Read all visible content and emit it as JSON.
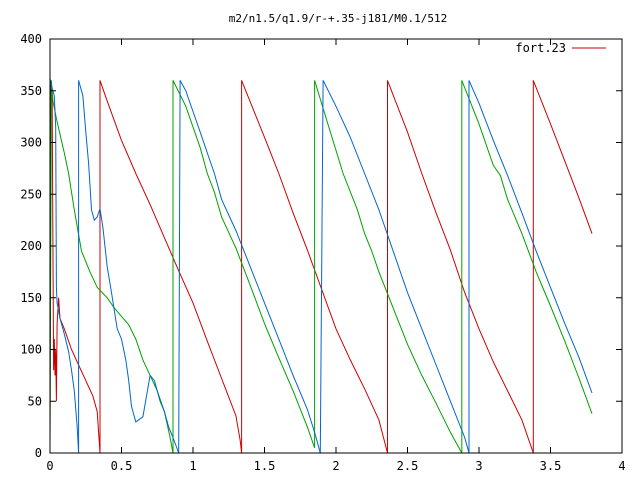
{
  "chart_data": {
    "type": "line",
    "title": "m2/n1.5/q1.9/r-+.35-j181/M0.1/512",
    "xlim": [
      0,
      4
    ],
    "ylim": [
      0,
      400
    ],
    "x_ticks": [
      0,
      0.5,
      1,
      1.5,
      2,
      2.5,
      3,
      3.5,
      4
    ],
    "x_tick_labels": [
      "0",
      "0.5",
      "1",
      "1.5",
      "2",
      "2.5",
      "3",
      "3.5",
      "4"
    ],
    "y_ticks": [
      0,
      50,
      100,
      150,
      200,
      250,
      300,
      350,
      400
    ],
    "y_tick_labels": [
      "0",
      "50",
      "100",
      "150",
      "200",
      "250",
      "300",
      "350",
      "400"
    ],
    "grid": false,
    "legend_position": "top-right",
    "legend": [
      "fort.23"
    ],
    "colors": {
      "red": "#cc0000",
      "green": "#00a000",
      "blue": "#0066cc"
    },
    "series": [
      {
        "name": "fort.23",
        "color": "#cc0000",
        "segments": [
          [
            [
              0.0,
              10
            ],
            [
              0.005,
              360
            ],
            [
              0.015,
              350
            ],
            [
              0.025,
              80
            ],
            [
              0.03,
              110
            ],
            [
              0.035,
              75
            ],
            [
              0.04,
              100
            ],
            [
              0.045,
              50
            ],
            [
              0.05,
              125
            ],
            [
              0.06,
              150
            ],
            [
              0.07,
              130
            ],
            [
              0.1,
              120
            ],
            [
              0.15,
              100
            ],
            [
              0.2,
              85
            ],
            [
              0.25,
              70
            ],
            [
              0.3,
              55
            ],
            [
              0.33,
              40
            ],
            [
              0.35,
              0
            ]
          ],
          [
            [
              0.35,
              360
            ],
            [
              0.4,
              340
            ],
            [
              0.5,
              302
            ],
            [
              0.6,
              270
            ],
            [
              0.7,
              240
            ],
            [
              0.8,
              208
            ],
            [
              0.9,
              176
            ],
            [
              1.0,
              145
            ],
            [
              1.1,
              108
            ],
            [
              1.2,
              72
            ],
            [
              1.3,
              36
            ],
            [
              1.33,
              12
            ],
            [
              1.34,
              0
            ]
          ],
          [
            [
              1.34,
              360
            ],
            [
              1.5,
              305
            ],
            [
              1.6,
              270
            ],
            [
              1.7,
              232
            ],
            [
              1.8,
              196
            ],
            [
              1.9,
              158
            ],
            [
              2.0,
              120
            ],
            [
              2.1,
              90
            ],
            [
              2.2,
              62
            ],
            [
              2.3,
              32
            ],
            [
              2.36,
              0
            ]
          ],
          [
            [
              2.36,
              360
            ],
            [
              2.5,
              310
            ],
            [
              2.6,
              270
            ],
            [
              2.7,
              232
            ],
            [
              2.8,
              196
            ],
            [
              2.9,
              155
            ],
            [
              3.0,
              120
            ],
            [
              3.1,
              88
            ],
            [
              3.2,
              60
            ],
            [
              3.3,
              32
            ],
            [
              3.38,
              0
            ]
          ],
          [
            [
              3.38,
              360
            ],
            [
              3.5,
              318
            ],
            [
              3.6,
              282
            ],
            [
              3.7,
              246
            ],
            [
              3.79,
              212
            ]
          ]
        ]
      },
      {
        "color": "#00a000",
        "segments": [
          [
            [
              0.0,
              10
            ],
            [
              0.01,
              360
            ],
            [
              0.02,
              340
            ],
            [
              0.05,
              320
            ],
            [
              0.1,
              290
            ],
            [
              0.13,
              270
            ],
            [
              0.17,
              235
            ],
            [
              0.22,
              195
            ],
            [
              0.28,
              175
            ],
            [
              0.33,
              160
            ],
            [
              0.4,
              150
            ],
            [
              0.45,
              140
            ],
            [
              0.5,
              132
            ],
            [
              0.55,
              124
            ],
            [
              0.6,
              110
            ],
            [
              0.65,
              90
            ],
            [
              0.7,
              75
            ],
            [
              0.75,
              60
            ],
            [
              0.8,
              40
            ],
            [
              0.84,
              15
            ],
            [
              0.86,
              0
            ]
          ],
          [
            [
              0.86,
              360
            ],
            [
              0.95,
              335
            ],
            [
              1.05,
              295
            ],
            [
              1.1,
              270
            ],
            [
              1.15,
              252
            ],
            [
              1.2,
              228
            ],
            [
              1.3,
              198
            ],
            [
              1.4,
              162
            ],
            [
              1.5,
              125
            ],
            [
              1.6,
              92
            ],
            [
              1.7,
              60
            ],
            [
              1.8,
              25
            ],
            [
              1.85,
              5
            ]
          ],
          [
            [
              1.85,
              360
            ],
            [
              1.95,
              315
            ],
            [
              2.05,
              270
            ],
            [
              2.15,
              235
            ],
            [
              2.2,
              212
            ],
            [
              2.25,
              195
            ],
            [
              2.3,
              175
            ],
            [
              2.4,
              140
            ],
            [
              2.5,
              105
            ],
            [
              2.6,
              75
            ],
            [
              2.7,
              48
            ],
            [
              2.8,
              20
            ],
            [
              2.88,
              0
            ]
          ],
          [
            [
              2.88,
              360
            ],
            [
              3.0,
              318
            ],
            [
              3.1,
              278
            ],
            [
              3.15,
              268
            ],
            [
              3.2,
              245
            ],
            [
              3.3,
              212
            ],
            [
              3.4,
              175
            ],
            [
              3.5,
              142
            ],
            [
              3.6,
              108
            ],
            [
              3.7,
              72
            ],
            [
              3.79,
              38
            ]
          ]
        ]
      },
      {
        "color": "#0066cc",
        "segments": [
          [
            [
              0.0,
              362
            ],
            [
              0.01,
              355
            ],
            [
              0.02,
              350
            ],
            [
              0.03,
              345
            ],
            [
              0.04,
              315
            ],
            [
              0.045,
              160
            ],
            [
              0.05,
              145
            ],
            [
              0.07,
              130
            ],
            [
              0.1,
              115
            ],
            [
              0.13,
              98
            ],
            [
              0.15,
              80
            ],
            [
              0.17,
              60
            ],
            [
              0.19,
              25
            ],
            [
              0.2,
              0
            ]
          ],
          [
            [
              0.2,
              360
            ],
            [
              0.23,
              345
            ],
            [
              0.25,
              310
            ],
            [
              0.27,
              280
            ],
            [
              0.29,
              235
            ],
            [
              0.31,
              225
            ],
            [
              0.33,
              228
            ],
            [
              0.35,
              236
            ],
            [
              0.37,
              218
            ],
            [
              0.4,
              180
            ],
            [
              0.43,
              155
            ],
            [
              0.47,
              120
            ],
            [
              0.5,
              110
            ],
            [
              0.53,
              90
            ],
            [
              0.55,
              70
            ],
            [
              0.57,
              45
            ],
            [
              0.6,
              30
            ],
            [
              0.65,
              35
            ],
            [
              0.7,
              75
            ],
            [
              0.73,
              70
            ],
            [
              0.77,
              50
            ],
            [
              0.8,
              40
            ],
            [
              0.83,
              25
            ],
            [
              0.86,
              15
            ],
            [
              0.9,
              0
            ]
          ],
          [
            [
              0.91,
              360
            ],
            [
              0.95,
              350
            ],
            [
              1.0,
              330
            ],
            [
              1.05,
              310
            ],
            [
              1.1,
              290
            ],
            [
              1.15,
              270
            ],
            [
              1.2,
              245
            ],
            [
              1.3,
              215
            ],
            [
              1.4,
              180
            ],
            [
              1.5,
              145
            ],
            [
              1.6,
              110
            ],
            [
              1.7,
              75
            ],
            [
              1.8,
              42
            ],
            [
              1.85,
              20
            ],
            [
              1.89,
              0
            ]
          ],
          [
            [
              1.91,
              360
            ],
            [
              2.0,
              335
            ],
            [
              2.1,
              305
            ],
            [
              2.2,
              270
            ],
            [
              2.3,
              235
            ],
            [
              2.4,
              195
            ],
            [
              2.5,
              155
            ],
            [
              2.6,
              120
            ],
            [
              2.7,
              85
            ],
            [
              2.8,
              50
            ],
            [
              2.9,
              15
            ],
            [
              2.93,
              0
            ]
          ],
          [
            [
              2.93,
              360
            ],
            [
              3.0,
              338
            ],
            [
              3.1,
              302
            ],
            [
              3.2,
              268
            ],
            [
              3.3,
              232
            ],
            [
              3.4,
              195
            ],
            [
              3.5,
              160
            ],
            [
              3.6,
              125
            ],
            [
              3.7,
              92
            ],
            [
              3.79,
              58
            ]
          ]
        ]
      }
    ]
  }
}
